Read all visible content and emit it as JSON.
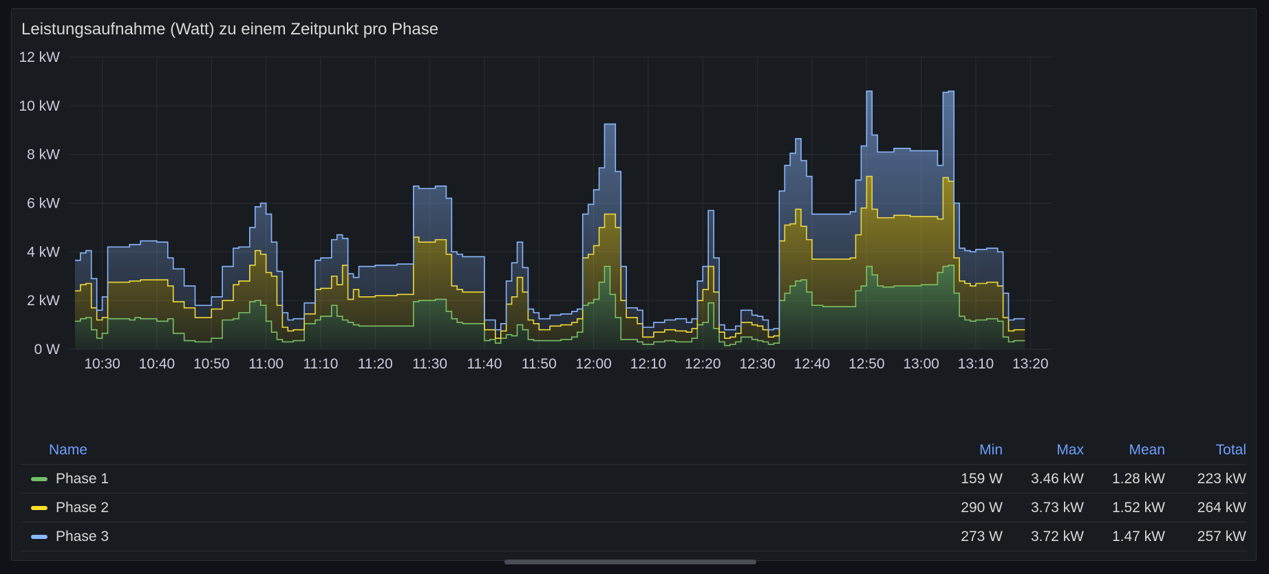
{
  "panel": {
    "title": "Leistungsaufnahme (Watt) zu einem Zeitpunkt pro Phase"
  },
  "legend": {
    "headers": {
      "name": "Name",
      "min": "Min",
      "max": "Max",
      "mean": "Mean",
      "total": "Total"
    },
    "rows": [
      {
        "name": "Phase 1",
        "color": "#73bf69",
        "min": "159 W",
        "max": "3.46 kW",
        "mean": "1.28 kW",
        "total": "223 kW"
      },
      {
        "name": "Phase 2",
        "color": "#fade2a",
        "min": "290 W",
        "max": "3.73 kW",
        "mean": "1.52 kW",
        "total": "264 kW"
      },
      {
        "name": "Phase 3",
        "color": "#8ab8ff",
        "min": "273 W",
        "max": "3.72 kW",
        "mean": "1.47 kW",
        "total": "257 kW"
      }
    ]
  },
  "chart_data": {
    "type": "area",
    "stacked": true,
    "step": true,
    "x_unit": "time (HH:MM)",
    "xlim": [
      "10:24",
      "13:24"
    ],
    "ylim": [
      0,
      12
    ],
    "y_unit": "kW",
    "grid": true,
    "legend_placement": "bottom-table",
    "x_ticks": [
      "10:30",
      "10:40",
      "10:50",
      "11:00",
      "11:10",
      "11:20",
      "11:30",
      "11:40",
      "11:50",
      "12:00",
      "12:10",
      "12:20",
      "12:30",
      "12:40",
      "12:50",
      "13:00",
      "13:10",
      "13:20"
    ],
    "y_ticks": [
      "0 W",
      "2 kW",
      "4 kW",
      "6 kW",
      "8 kW",
      "10 kW",
      "12 kW"
    ],
    "x": [
      "10:25",
      "10:26",
      "10:27",
      "10:28",
      "10:29",
      "10:30",
      "10:31",
      "10:35",
      "10:36",
      "10:37",
      "10:40",
      "10:42",
      "10:43",
      "10:45",
      "10:47",
      "10:48",
      "10:50",
      "10:52",
      "10:54",
      "10:55",
      "10:57",
      "10:58",
      "10:59",
      "11:00",
      "11:01",
      "11:02",
      "11:03",
      "11:04",
      "11:05",
      "11:07",
      "11:09",
      "11:10",
      "11:12",
      "11:13",
      "11:14",
      "11:15",
      "11:16",
      "11:17",
      "11:20",
      "11:24",
      "11:27",
      "11:28",
      "11:31",
      "11:33",
      "11:34",
      "11:35",
      "11:36",
      "11:40",
      "11:41",
      "11:42",
      "11:43",
      "11:44",
      "11:45",
      "11:46",
      "11:47",
      "11:48",
      "11:49",
      "11:50",
      "11:52",
      "11:54",
      "11:56",
      "11:57",
      "11:58",
      "11:59",
      "12:00",
      "12:01",
      "12:02",
      "12:03",
      "12:04",
      "12:05",
      "12:06",
      "12:08",
      "12:09",
      "12:11",
      "12:13",
      "12:15",
      "12:17",
      "12:18",
      "12:19",
      "12:20",
      "12:21",
      "12:22",
      "12:23",
      "12:24",
      "12:25",
      "12:26",
      "12:27",
      "12:29",
      "12:30",
      "12:31",
      "12:32",
      "12:33",
      "12:34",
      "12:35",
      "12:36",
      "12:37",
      "12:38",
      "12:39",
      "12:40",
      "12:42",
      "12:45",
      "12:47",
      "12:48",
      "12:49",
      "12:50",
      "12:51",
      "12:52",
      "12:53",
      "12:55",
      "12:58",
      "13:00",
      "13:03",
      "13:04",
      "13:05",
      "13:06",
      "13:07",
      "13:08",
      "13:09",
      "13:10",
      "13:12",
      "13:14",
      "13:15",
      "13:16",
      "13:17",
      "13:18"
    ],
    "series": [
      {
        "name": "Phase 1",
        "color": "#73bf69",
        "values": [
          1.15,
          1.25,
          1.3,
          0.8,
          0.45,
          0.65,
          1.25,
          1.2,
          1.3,
          1.25,
          1.15,
          1.25,
          0.65,
          0.35,
          0.3,
          0.3,
          0.45,
          1.2,
          1.25,
          1.5,
          1.95,
          2.0,
          1.8,
          1.15,
          0.7,
          0.4,
          0.3,
          0.3,
          0.35,
          1.05,
          1.2,
          1.35,
          1.8,
          1.35,
          1.2,
          1.1,
          1.0,
          0.95,
          0.95,
          0.95,
          1.95,
          2.0,
          2.05,
          1.55,
          1.25,
          1.1,
          1.05,
          0.35,
          0.4,
          0.25,
          0.45,
          0.6,
          0.55,
          1.0,
          0.8,
          0.4,
          0.35,
          0.35,
          0.35,
          0.4,
          0.5,
          0.7,
          1.8,
          1.9,
          2.05,
          2.75,
          3.4,
          2.25,
          1.3,
          0.4,
          0.4,
          0.3,
          0.2,
          0.3,
          0.35,
          0.3,
          0.3,
          0.45,
          1.0,
          1.1,
          1.9,
          0.85,
          0.3,
          0.15,
          0.2,
          0.3,
          0.5,
          0.4,
          0.35,
          0.3,
          0.2,
          0.25,
          2.0,
          2.3,
          2.6,
          2.8,
          2.85,
          2.35,
          1.8,
          1.75,
          1.75,
          1.75,
          2.4,
          2.6,
          3.4,
          3.05,
          2.6,
          2.55,
          2.6,
          2.6,
          2.65,
          3.15,
          3.4,
          3.45,
          2.3,
          1.35,
          1.2,
          1.15,
          1.2,
          1.25,
          1.15,
          0.5,
          0.3,
          0.35,
          0.35
        ]
      },
      {
        "name": "Phase 2",
        "color": "#fade2a",
        "values": [
          1.25,
          1.4,
          1.4,
          0.9,
          0.75,
          0.65,
          1.5,
          1.6,
          1.5,
          1.6,
          1.7,
          1.35,
          1.3,
          1.35,
          1.0,
          1.0,
          1.2,
          0.8,
          1.4,
          1.3,
          1.5,
          2.05,
          2.1,
          2.0,
          2.3,
          1.4,
          0.6,
          0.45,
          0.45,
          0.4,
          1.25,
          1.15,
          1.2,
          1.3,
          2.25,
          0.95,
          1.45,
          1.2,
          1.25,
          1.3,
          2.65,
          2.4,
          2.45,
          2.35,
          1.35,
          1.35,
          1.3,
          0.45,
          0.4,
          0.2,
          0.3,
          1.25,
          1.6,
          1.95,
          1.55,
          0.8,
          0.7,
          0.45,
          0.6,
          0.6,
          0.6,
          0.55,
          1.95,
          2.0,
          2.2,
          2.25,
          2.15,
          3.3,
          3.7,
          1.6,
          0.9,
          0.75,
          0.3,
          0.4,
          0.45,
          0.45,
          0.4,
          0.4,
          1.0,
          1.35,
          1.5,
          1.5,
          0.4,
          0.3,
          0.3,
          0.35,
          0.6,
          0.6,
          0.6,
          0.5,
          0.3,
          0.3,
          2.45,
          2.8,
          2.55,
          2.95,
          2.2,
          2.15,
          1.9,
          1.95,
          1.95,
          2.0,
          2.3,
          3.2,
          3.7,
          2.7,
          2.8,
          2.85,
          2.9,
          2.85,
          2.8,
          2.2,
          3.65,
          3.45,
          1.45,
          1.45,
          1.5,
          1.45,
          1.5,
          1.5,
          1.45,
          0.8,
          0.45,
          0.45,
          0.45
        ]
      },
      {
        "name": "Phase 3",
        "color": "#8ab8ff",
        "values": [
          1.25,
          1.3,
          1.35,
          1.2,
          0.4,
          0.85,
          1.45,
          1.5,
          1.5,
          1.6,
          1.55,
          1.15,
          1.35,
          0.9,
          0.5,
          0.5,
          0.5,
          1.4,
          1.5,
          1.4,
          1.55,
          1.8,
          2.1,
          2.4,
          1.4,
          1.4,
          0.6,
          0.45,
          0.45,
          0.45,
          1.2,
          1.25,
          1.5,
          2.05,
          1.1,
          1.05,
          0.5,
          1.25,
          1.25,
          1.25,
          2.1,
          2.2,
          2.2,
          2.3,
          1.4,
          1.45,
          1.45,
          0.4,
          0.4,
          0.35,
          0.3,
          0.95,
          1.4,
          1.45,
          1.0,
          0.45,
          0.45,
          0.45,
          0.45,
          0.45,
          0.45,
          0.4,
          1.8,
          2.05,
          2.3,
          2.45,
          3.7,
          3.7,
          2.3,
          1.4,
          0.4,
          0.55,
          0.4,
          0.4,
          0.4,
          0.5,
          0.4,
          0.4,
          0.8,
          0.95,
          2.3,
          1.4,
          0.3,
          0.35,
          0.3,
          0.3,
          0.5,
          0.4,
          0.4,
          0.4,
          0.3,
          0.3,
          2.05,
          2.45,
          2.9,
          2.9,
          2.7,
          2.6,
          1.85,
          1.85,
          1.85,
          1.9,
          2.25,
          2.55,
          3.5,
          3.05,
          2.7,
          2.7,
          2.75,
          2.7,
          2.7,
          2.2,
          3.5,
          3.7,
          2.25,
          1.35,
          1.35,
          1.4,
          1.4,
          1.4,
          1.4,
          1.0,
          0.45,
          0.45,
          0.45
        ]
      }
    ]
  }
}
